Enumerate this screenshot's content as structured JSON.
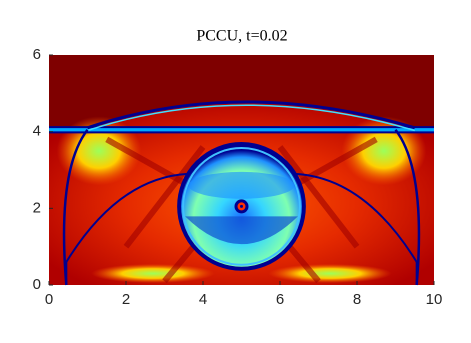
{
  "chart_data": {
    "type": "image",
    "title": "PCCU, t=0.02",
    "xlim": [
      0,
      10
    ],
    "ylim": [
      0,
      6
    ],
    "xticks": [
      0,
      2,
      4,
      6,
      8,
      10
    ],
    "yticks": [
      0,
      2,
      4,
      6
    ]
  }
}
